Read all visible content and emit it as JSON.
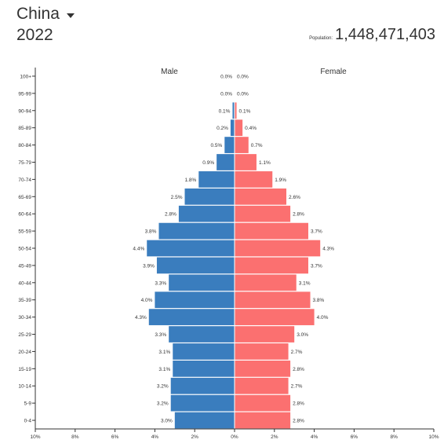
{
  "header": {
    "country": "China",
    "year": "2022",
    "population_label": "Population:",
    "population_value": "1,448,471,403"
  },
  "chart_data": {
    "type": "bar",
    "orientation": "horizontal-pyramid",
    "categories": [
      "0-4",
      "5-9",
      "10-14",
      "15-19",
      "20-24",
      "25-29",
      "30-34",
      "35-39",
      "40-44",
      "45-49",
      "50-54",
      "55-59",
      "60-64",
      "65-69",
      "70-74",
      "75-79",
      "80-84",
      "85-89",
      "90-94",
      "95-99",
      "100+"
    ],
    "series": [
      {
        "name": "Male",
        "color": "#3a7dbe",
        "values": [
          3.0,
          3.2,
          3.2,
          3.1,
          3.1,
          3.3,
          4.3,
          4.0,
          3.3,
          3.9,
          4.4,
          3.8,
          2.8,
          2.5,
          1.8,
          0.9,
          0.5,
          0.2,
          0.1,
          0.0,
          0.0
        ],
        "labels": [
          "3.0%",
          "3.2%",
          "3.2%",
          "3.1%",
          "3.1%",
          "3.3%",
          "4.3%",
          "4.0%",
          "3.3%",
          "3.9%",
          "4.4%",
          "3.8%",
          "2.8%",
          "2.5%",
          "1.8%",
          "0.9%",
          "0.5%",
          "0.2%",
          "0.1%",
          "0.0%",
          "0.0%"
        ]
      },
      {
        "name": "Female",
        "color": "#fb7070",
        "values": [
          2.8,
          2.8,
          2.7,
          2.8,
          2.7,
          3.0,
          4.0,
          3.8,
          3.1,
          3.7,
          4.3,
          3.7,
          2.8,
          2.6,
          1.9,
          1.1,
          0.7,
          0.4,
          0.1,
          0.0,
          0.0
        ],
        "labels": [
          "2.8%",
          "2.8%",
          "2.7%",
          "2.8%",
          "2.7%",
          "3.0%",
          "4.0%",
          "3.8%",
          "3.1%",
          "3.7%",
          "4.3%",
          "3.7%",
          "2.8%",
          "2.6%",
          "1.9%",
          "1.1%",
          "0.7%",
          "0.4%",
          "0.1%",
          "0.0%",
          "0.0%"
        ]
      }
    ],
    "xlim": [
      -10,
      10
    ],
    "xticks": [
      -10,
      -8,
      -6,
      -4,
      -2,
      0,
      2,
      4,
      6,
      8,
      10
    ],
    "xtick_labels": [
      "10%",
      "8%",
      "6%",
      "4%",
      "2%",
      "0%",
      "2%",
      "4%",
      "6%",
      "8%",
      "10%"
    ],
    "grid": false
  }
}
